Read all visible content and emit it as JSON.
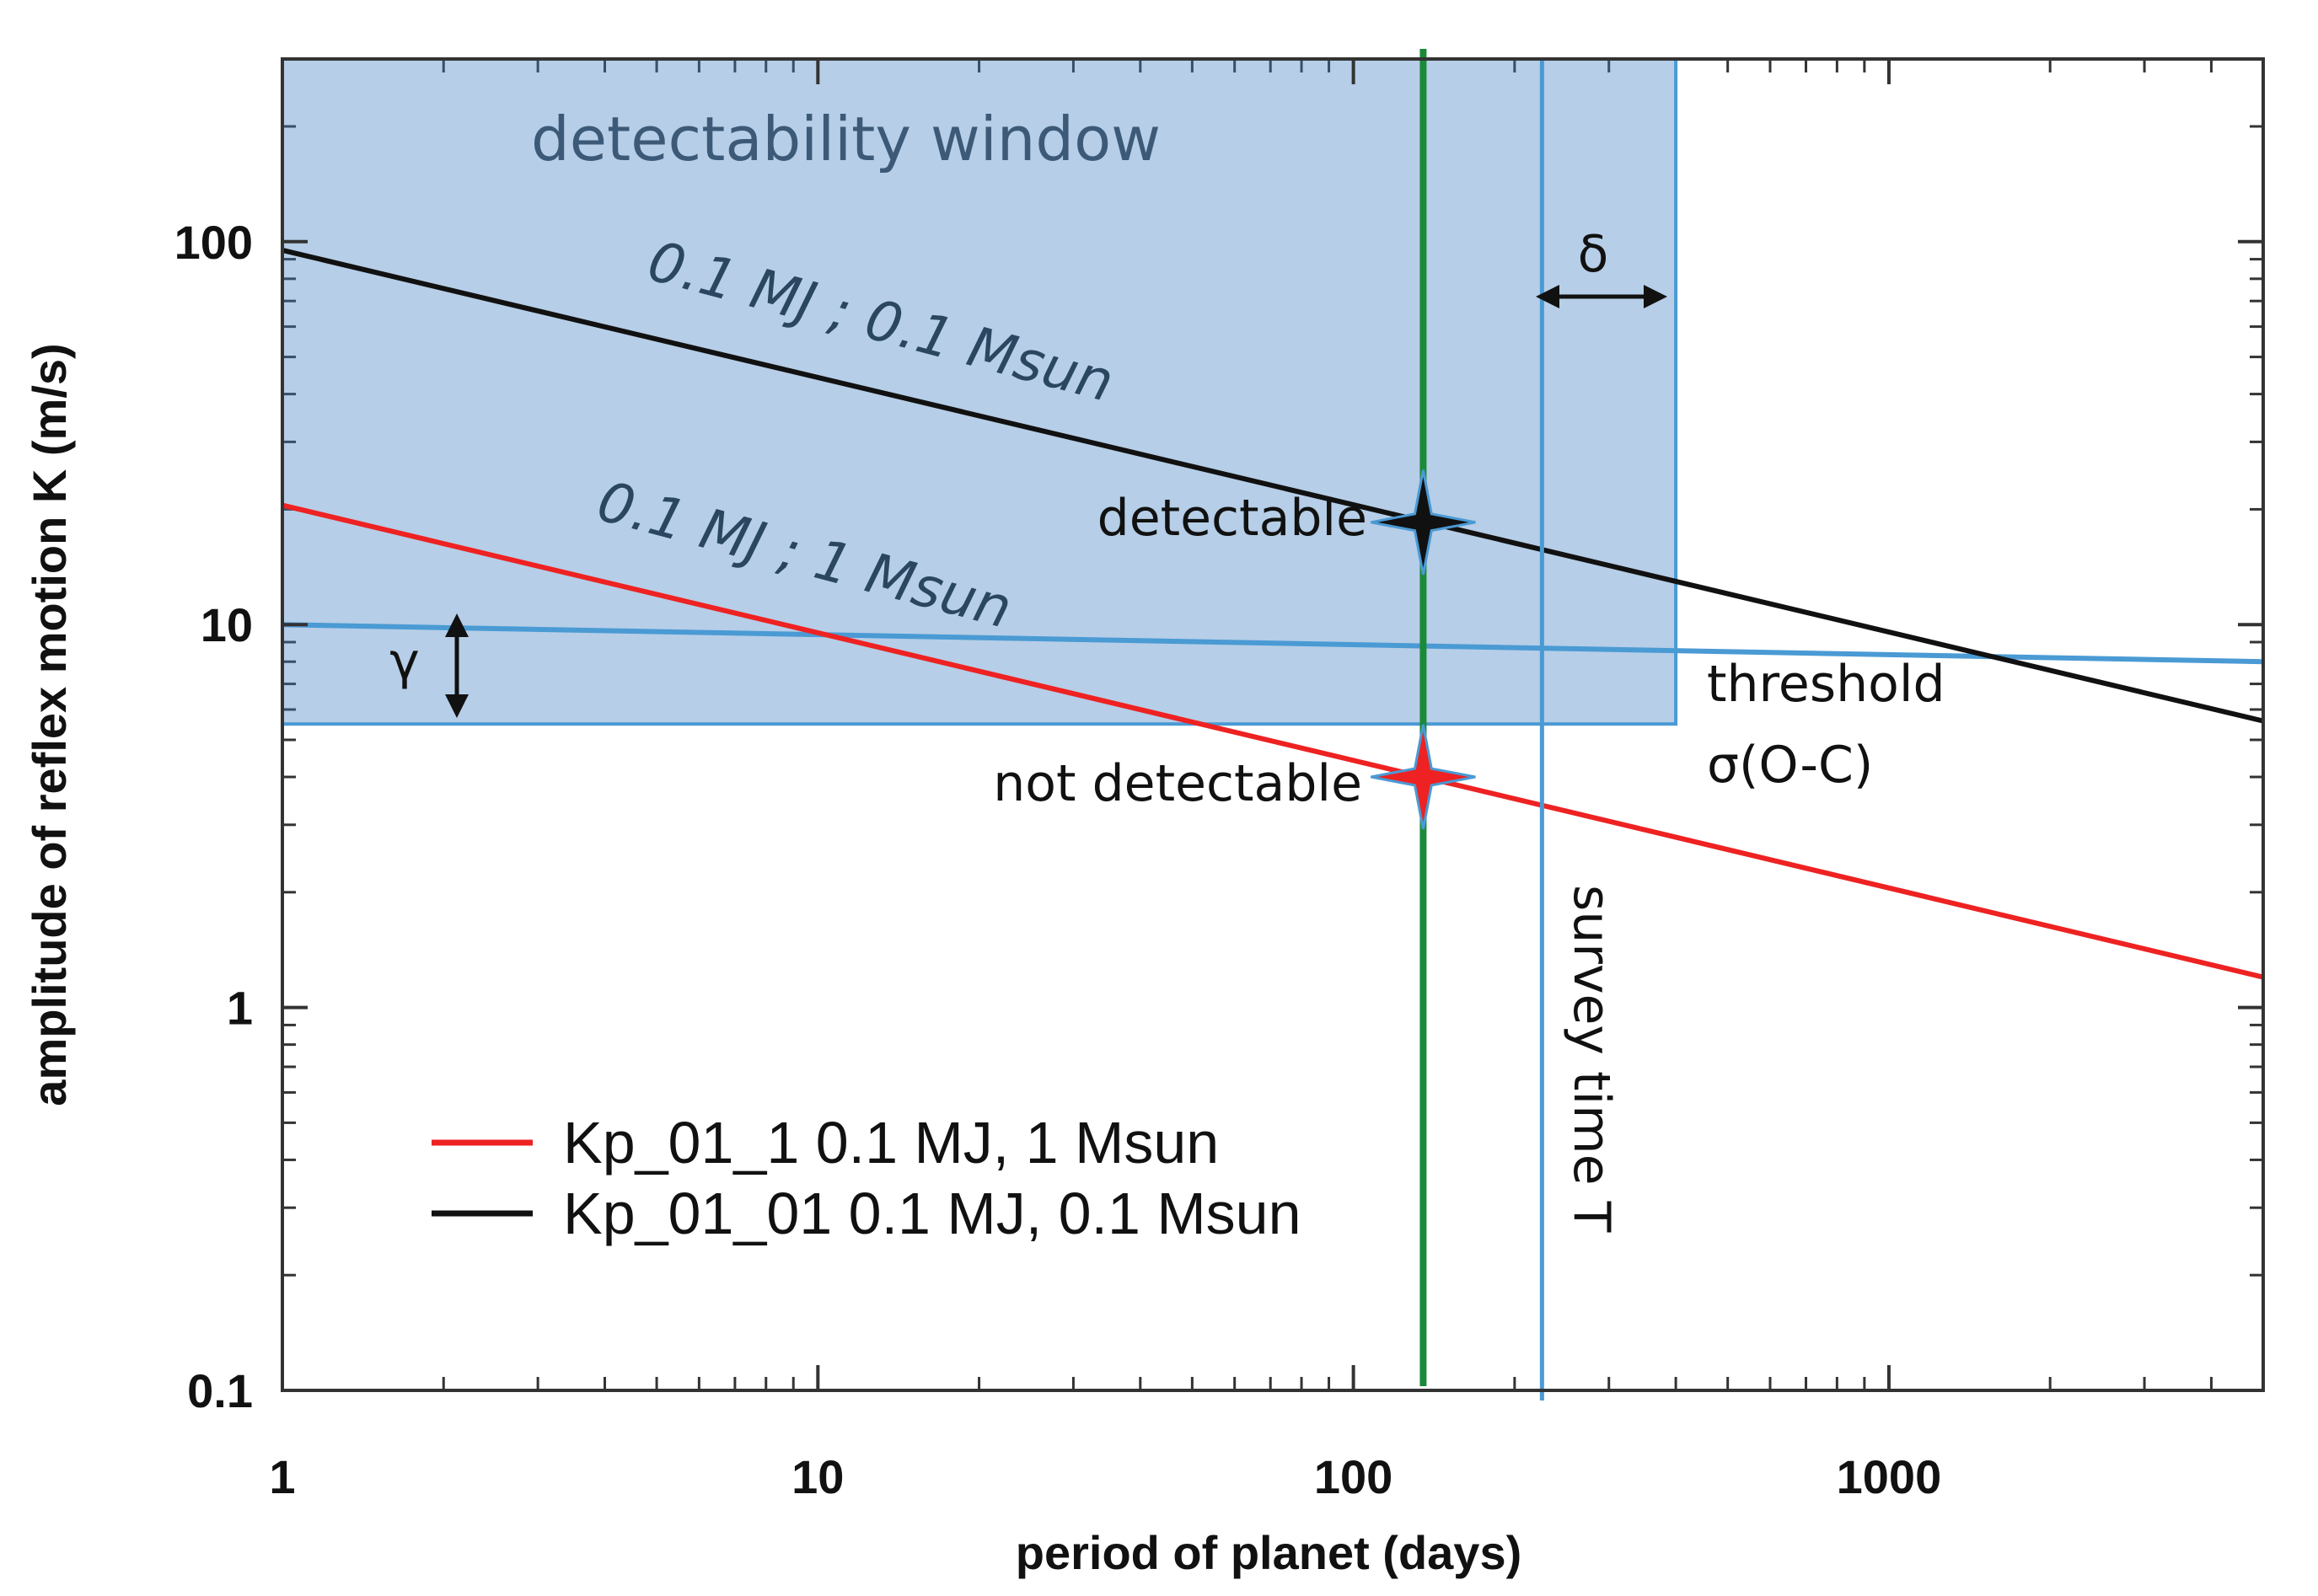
{
  "chart_data": {
    "type": "line",
    "x_scale": "log",
    "y_scale": "log",
    "xlim": [
      1,
      5000
    ],
    "ylim": [
      0.1,
      300
    ],
    "xlabel": "period of planet (days)",
    "ylabel": "amplitude of reflex motion K (m/s)",
    "x_ticks": [
      {
        "value": 1,
        "label": "1"
      },
      {
        "value": 10,
        "label": "10"
      },
      {
        "value": 100,
        "label": "100"
      },
      {
        "value": 1000,
        "label": "1000"
      }
    ],
    "y_ticks": [
      {
        "value": 0.1,
        "label": "0.1"
      },
      {
        "value": 1,
        "label": "1"
      },
      {
        "value": 10,
        "label": "10"
      },
      {
        "value": 100,
        "label": "100"
      }
    ],
    "series": [
      {
        "name": "Kp_01_1 0.1 MJ, 1 Msun",
        "color": "#ee2222",
        "x": [
          1,
          5000
        ],
        "y": [
          20.5,
          1.2
        ]
      },
      {
        "name": "Kp_01_01 0.1 MJ, 0.1 Msun",
        "color": "#111111",
        "x": [
          1,
          5000
        ],
        "y": [
          95,
          5.6
        ]
      }
    ],
    "threshold_line": {
      "x": [
        1,
        5000
      ],
      "y": [
        10,
        8.0
      ],
      "color": "#4a9ad4"
    },
    "detectability_window": {
      "x": [
        1,
        400
      ],
      "y": [
        5.5,
        300
      ],
      "fill": "#3f7fc0",
      "label": "detectability window"
    },
    "period_marker": {
      "x": 135,
      "color": "#1a8a3a"
    },
    "survey_time_line": {
      "x": 225,
      "color": "#4a9ad4",
      "label": "survey time T"
    },
    "points": [
      {
        "label": "detectable",
        "x": 135,
        "y": 18.5,
        "color": "#111111"
      },
      {
        "label": "not detectable",
        "x": 135,
        "y": 4.0,
        "color": "#ee2222"
      }
    ],
    "annotations": {
      "curve_black": "0.1 MJ ; 0.1 Msun",
      "curve_red": "0.1 MJ ; 1 Msun",
      "threshold": "threshold",
      "sigma": "σ(O-C)",
      "delta": "δ",
      "gamma": "γ"
    },
    "legend_position": "bottom-left"
  }
}
